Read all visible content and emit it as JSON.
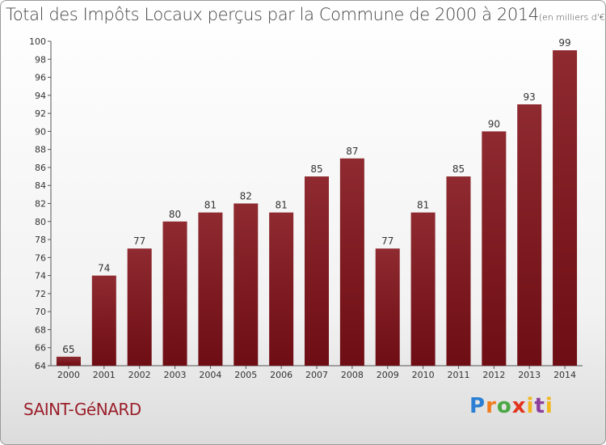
{
  "chart_data": {
    "type": "bar",
    "title": "Total des Impôts Locaux perçus par la Commune de 2000 à 2014",
    "unit": "(en milliers d'€)",
    "xlabel": "",
    "ylabel": "",
    "categories": [
      "2000",
      "2001",
      "2002",
      "2003",
      "2004",
      "2005",
      "2006",
      "2007",
      "2008",
      "2009",
      "2010",
      "2011",
      "2012",
      "2013",
      "2014"
    ],
    "values": [
      65,
      74,
      77,
      80,
      81,
      82,
      81,
      85,
      87,
      77,
      81,
      85,
      90,
      93,
      99
    ],
    "ylim": [
      64,
      100
    ],
    "yticks": [
      64,
      66,
      68,
      70,
      72,
      74,
      76,
      78,
      80,
      82,
      84,
      86,
      88,
      90,
      92,
      94,
      96,
      98,
      100
    ],
    "grid": false,
    "bar_color": "#6e0d14"
  },
  "commune": "SAINT-GéNARD",
  "logo": {
    "p": "P",
    "r": "r",
    "o": "o",
    "x": "x",
    "i": "i",
    "t": "t",
    "i2": "i"
  }
}
